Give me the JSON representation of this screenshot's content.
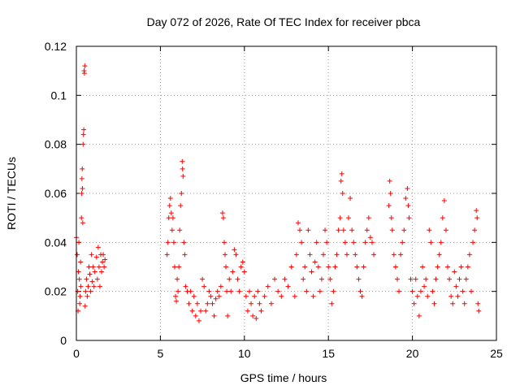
{
  "chart_data": {
    "type": "scatter",
    "title": "Day 072 of 2026, Rate Of TEC Index for receiver pbca",
    "xlabel": "GPS time / hours",
    "ylabel": "ROTI / TECUs",
    "xlim": [
      0,
      25
    ],
    "ylim": [
      0,
      0.12
    ],
    "xticks": [
      0,
      5,
      10,
      15,
      20,
      25
    ],
    "xtick_labels": [
      "0",
      "5",
      "10",
      "15",
      "20",
      "25"
    ],
    "yticks": [
      0,
      0.02,
      0.04,
      0.06,
      0.08,
      0.1,
      0.12
    ],
    "ytick_labels": [
      "0",
      "0.02",
      "0.04",
      "0.06",
      "0.08",
      "0.1",
      "0.12"
    ],
    "grid": true,
    "marker": "+",
    "color": "#ff0000",
    "series": [
      {
        "name": "ROTI",
        "points": [
          [
            0.0,
            0.042
          ],
          [
            0.05,
            0.035
          ],
          [
            0.08,
            0.02
          ],
          [
            0.1,
            0.012
          ],
          [
            0.12,
            0.028
          ],
          [
            0.15,
            0.04
          ],
          [
            0.18,
            0.025
          ],
          [
            0.2,
            0.015
          ],
          [
            0.22,
            0.018
          ],
          [
            0.25,
            0.032
          ],
          [
            0.27,
            0.022
          ],
          [
            0.3,
            0.05
          ],
          [
            0.32,
            0.06
          ],
          [
            0.33,
            0.066
          ],
          [
            0.35,
            0.07
          ],
          [
            0.36,
            0.062
          ],
          [
            0.38,
            0.048
          ],
          [
            0.4,
            0.08
          ],
          [
            0.42,
            0.084
          ],
          [
            0.44,
            0.086
          ],
          [
            0.46,
            0.11
          ],
          [
            0.48,
            0.109
          ],
          [
            0.5,
            0.112
          ],
          [
            0.52,
            0.014
          ],
          [
            0.55,
            0.02
          ],
          [
            0.6,
            0.025
          ],
          [
            0.65,
            0.018
          ],
          [
            0.7,
            0.022
          ],
          [
            0.75,
            0.03
          ],
          [
            0.8,
            0.027
          ],
          [
            0.85,
            0.02
          ],
          [
            0.9,
            0.035
          ],
          [
            0.95,
            0.024
          ],
          [
            1.0,
            0.03
          ],
          [
            1.05,
            0.022
          ],
          [
            1.1,
            0.028
          ],
          [
            1.2,
            0.034
          ],
          [
            1.25,
            0.025
          ],
          [
            1.3,
            0.038
          ],
          [
            1.35,
            0.03
          ],
          [
            1.4,
            0.022
          ],
          [
            1.45,
            0.035
          ],
          [
            1.5,
            0.028
          ],
          [
            1.55,
            0.032
          ],
          [
            1.6,
            0.035
          ],
          [
            1.65,
            0.03
          ],
          [
            1.7,
            0.033
          ],
          [
            5.4,
            0.035
          ],
          [
            5.45,
            0.04
          ],
          [
            5.5,
            0.05
          ],
          [
            5.55,
            0.055
          ],
          [
            5.6,
            0.058
          ],
          [
            5.65,
            0.052
          ],
          [
            5.7,
            0.045
          ],
          [
            5.75,
            0.05
          ],
          [
            5.8,
            0.04
          ],
          [
            5.85,
            0.03
          ],
          [
            5.9,
            0.018
          ],
          [
            5.95,
            0.016
          ],
          [
            6.0,
            0.025
          ],
          [
            6.05,
            0.02
          ],
          [
            6.1,
            0.03
          ],
          [
            6.15,
            0.045
          ],
          [
            6.2,
            0.055
          ],
          [
            6.25,
            0.06
          ],
          [
            6.3,
            0.073
          ],
          [
            6.32,
            0.07
          ],
          [
            6.35,
            0.067
          ],
          [
            6.4,
            0.04
          ],
          [
            6.45,
            0.035
          ],
          [
            6.5,
            0.022
          ],
          [
            6.6,
            0.02
          ],
          [
            6.7,
            0.015
          ],
          [
            6.8,
            0.02
          ],
          [
            6.9,
            0.012
          ],
          [
            7.0,
            0.018
          ],
          [
            7.1,
            0.01
          ],
          [
            7.2,
            0.015
          ],
          [
            7.3,
            0.008
          ],
          [
            7.4,
            0.012
          ],
          [
            7.5,
            0.025
          ],
          [
            7.6,
            0.022
          ],
          [
            7.7,
            0.012
          ],
          [
            7.8,
            0.015
          ],
          [
            7.9,
            0.02
          ],
          [
            8.0,
            0.018
          ],
          [
            8.1,
            0.015
          ],
          [
            8.2,
            0.01
          ],
          [
            8.3,
            0.017
          ],
          [
            8.4,
            0.02
          ],
          [
            8.5,
            0.018
          ],
          [
            8.6,
            0.022
          ],
          [
            8.7,
            0.052
          ],
          [
            8.75,
            0.05
          ],
          [
            8.8,
            0.04
          ],
          [
            8.85,
            0.035
          ],
          [
            8.9,
            0.03
          ],
          [
            8.95,
            0.02
          ],
          [
            9.0,
            0.01
          ],
          [
            9.1,
            0.025
          ],
          [
            9.2,
            0.02
          ],
          [
            9.3,
            0.028
          ],
          [
            9.4,
            0.037
          ],
          [
            9.5,
            0.035
          ],
          [
            9.6,
            0.025
          ],
          [
            9.7,
            0.02
          ],
          [
            9.8,
            0.03
          ],
          [
            9.9,
            0.032
          ],
          [
            10.0,
            0.028
          ],
          [
            10.1,
            0.018
          ],
          [
            10.2,
            0.012
          ],
          [
            10.3,
            0.02
          ],
          [
            10.4,
            0.015
          ],
          [
            10.5,
            0.01
          ],
          [
            10.6,
            0.018
          ],
          [
            10.7,
            0.009
          ],
          [
            10.8,
            0.02
          ],
          [
            10.9,
            0.015
          ],
          [
            11.0,
            0.012
          ],
          [
            11.2,
            0.018
          ],
          [
            11.4,
            0.022
          ],
          [
            11.6,
            0.015
          ],
          [
            11.8,
            0.025
          ],
          [
            12.0,
            0.02
          ],
          [
            12.2,
            0.018
          ],
          [
            12.4,
            0.025
          ],
          [
            12.6,
            0.022
          ],
          [
            12.8,
            0.03
          ],
          [
            13.0,
            0.018
          ],
          [
            13.1,
            0.035
          ],
          [
            13.2,
            0.048
          ],
          [
            13.3,
            0.045
          ],
          [
            13.4,
            0.04
          ],
          [
            13.5,
            0.025
          ],
          [
            13.6,
            0.03
          ],
          [
            13.7,
            0.02
          ],
          [
            13.8,
            0.045
          ],
          [
            13.9,
            0.035
          ],
          [
            14.0,
            0.028
          ],
          [
            14.1,
            0.018
          ],
          [
            14.2,
            0.032
          ],
          [
            14.3,
            0.04
          ],
          [
            14.4,
            0.03
          ],
          [
            14.5,
            0.02
          ],
          [
            14.6,
            0.025
          ],
          [
            14.7,
            0.035
          ],
          [
            14.8,
            0.045
          ],
          [
            14.9,
            0.04
          ],
          [
            15.0,
            0.03
          ],
          [
            15.1,
            0.025
          ],
          [
            15.2,
            0.015
          ],
          [
            15.3,
            0.02
          ],
          [
            15.4,
            0.03
          ],
          [
            15.5,
            0.035
          ],
          [
            15.6,
            0.045
          ],
          [
            15.7,
            0.05
          ],
          [
            15.75,
            0.065
          ],
          [
            15.8,
            0.068
          ],
          [
            15.85,
            0.06
          ],
          [
            15.9,
            0.045
          ],
          [
            16.0,
            0.04
          ],
          [
            16.1,
            0.035
          ],
          [
            16.2,
            0.05
          ],
          [
            16.3,
            0.058
          ],
          [
            16.4,
            0.045
          ],
          [
            16.5,
            0.04
          ],
          [
            16.6,
            0.035
          ],
          [
            16.7,
            0.03
          ],
          [
            16.8,
            0.025
          ],
          [
            16.9,
            0.02
          ],
          [
            17.0,
            0.018
          ],
          [
            17.1,
            0.03
          ],
          [
            17.2,
            0.04
          ],
          [
            17.3,
            0.045
          ],
          [
            17.4,
            0.05
          ],
          [
            17.5,
            0.042
          ],
          [
            17.6,
            0.04
          ],
          [
            17.7,
            0.035
          ],
          [
            18.6,
            0.055
          ],
          [
            18.65,
            0.065
          ],
          [
            18.7,
            0.06
          ],
          [
            18.75,
            0.05
          ],
          [
            18.8,
            0.045
          ],
          [
            18.9,
            0.035
          ],
          [
            19.0,
            0.03
          ],
          [
            19.1,
            0.025
          ],
          [
            19.2,
            0.02
          ],
          [
            19.3,
            0.035
          ],
          [
            19.4,
            0.04
          ],
          [
            19.5,
            0.045
          ],
          [
            19.6,
            0.058
          ],
          [
            19.7,
            0.062
          ],
          [
            19.75,
            0.055
          ],
          [
            19.8,
            0.05
          ],
          [
            19.9,
            0.025
          ],
          [
            20.0,
            0.02
          ],
          [
            20.1,
            0.015
          ],
          [
            20.2,
            0.025
          ],
          [
            20.3,
            0.018
          ],
          [
            20.4,
            0.01
          ],
          [
            20.5,
            0.02
          ],
          [
            20.6,
            0.03
          ],
          [
            20.7,
            0.022
          ],
          [
            20.8,
            0.025
          ],
          [
            20.9,
            0.018
          ],
          [
            21.0,
            0.045
          ],
          [
            21.1,
            0.04
          ],
          [
            21.2,
            0.02
          ],
          [
            21.3,
            0.015
          ],
          [
            21.4,
            0.025
          ],
          [
            21.5,
            0.03
          ],
          [
            21.6,
            0.035
          ],
          [
            21.7,
            0.04
          ],
          [
            21.8,
            0.05
          ],
          [
            21.9,
            0.057
          ],
          [
            22.0,
            0.045
          ],
          [
            22.1,
            0.03
          ],
          [
            22.2,
            0.025
          ],
          [
            22.3,
            0.018
          ],
          [
            22.4,
            0.015
          ],
          [
            22.5,
            0.028
          ],
          [
            22.6,
            0.022
          ],
          [
            22.7,
            0.018
          ],
          [
            22.8,
            0.025
          ],
          [
            22.9,
            0.03
          ],
          [
            23.0,
            0.02
          ],
          [
            23.1,
            0.015
          ],
          [
            23.2,
            0.025
          ],
          [
            23.3,
            0.03
          ],
          [
            23.4,
            0.035
          ],
          [
            23.5,
            0.02
          ],
          [
            23.6,
            0.04
          ],
          [
            23.7,
            0.045
          ],
          [
            23.8,
            0.053
          ],
          [
            23.85,
            0.05
          ],
          [
            23.9,
            0.015
          ],
          [
            23.95,
            0.012
          ]
        ]
      }
    ]
  }
}
